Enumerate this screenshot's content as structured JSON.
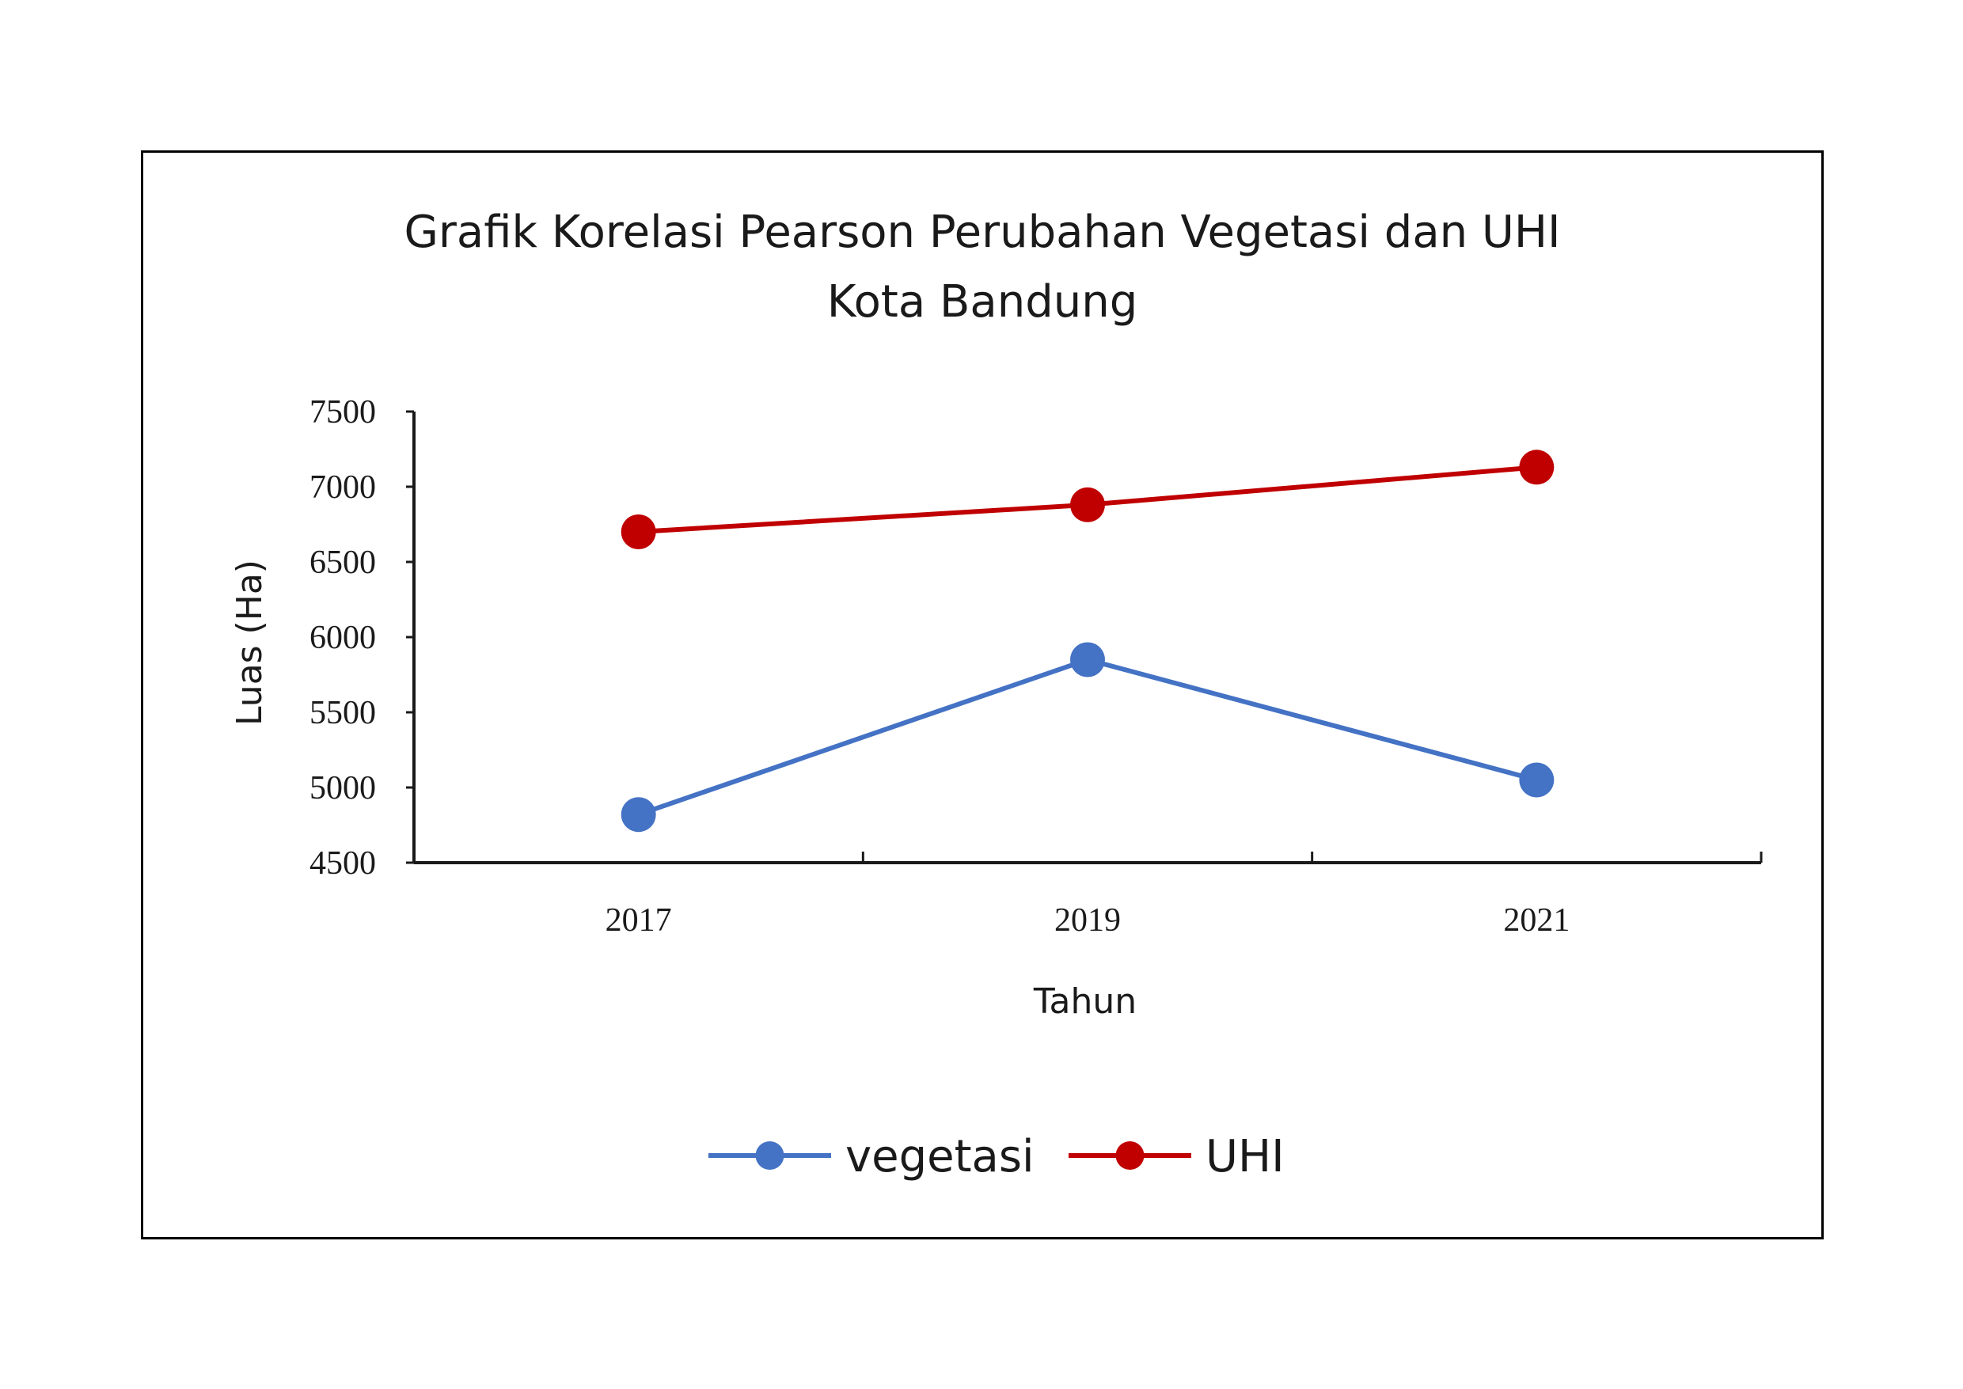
{
  "chart_data": {
    "type": "line",
    "title_line1": "Grafik Korelasi Pearson Perubahan Vegetasi dan UHI",
    "title_line2": "Kota Bandung",
    "xlabel": "Tahun",
    "ylabel": "Luas (Ha)",
    "categories": [
      "2017",
      "2019",
      "2021"
    ],
    "ylim": [
      4500,
      7500
    ],
    "yticks": [
      4500,
      5000,
      5500,
      6000,
      6500,
      7000,
      7500
    ],
    "grid": false,
    "legend_position": "bottom",
    "series": [
      {
        "name": "vegetasi",
        "color": "#4472c4",
        "values": [
          4820,
          5850,
          5050
        ]
      },
      {
        "name": "UHI",
        "color": "#c00000",
        "values": [
          6700,
          6880,
          7130
        ]
      }
    ]
  }
}
